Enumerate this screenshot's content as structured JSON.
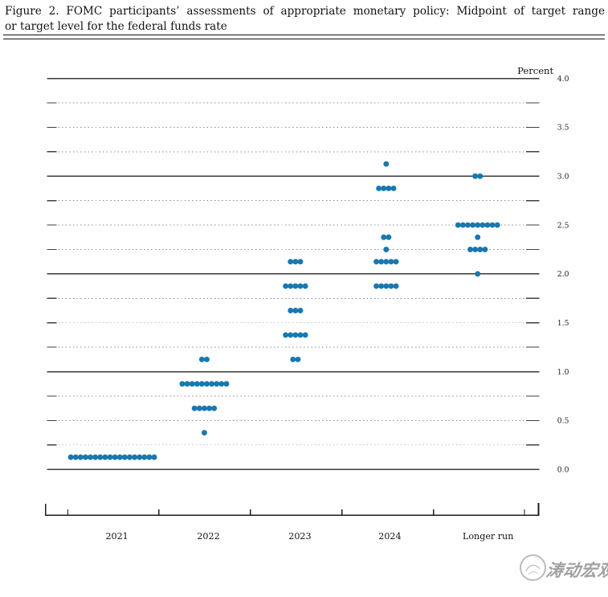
{
  "figure": {
    "title_line1": "Figure 2.  FOMC participants’ assessments of appropriate monetary policy:  Midpoint of target range",
    "title_line2": "or target level for the federal funds rate"
  },
  "watermark": {
    "text": "涛动宏观"
  },
  "chart_data": {
    "type": "scatter",
    "title": "FOMC participants’ assessments of appropriate monetary policy: Midpoint of target range or target level for the federal funds rate",
    "ylabel": "Percent",
    "xlabel": "",
    "ylim": [
      0.0,
      4.0
    ],
    "grid_step": 0.25,
    "label_step": 0.5,
    "grid": "dotted lines at quarter steps with solid end caps; solid lines at integers",
    "legend": "none",
    "yticklabels": [
      "4.0",
      "3.5",
      "3.0",
      "2.5",
      "2.0",
      "1.5",
      "1.0",
      "0.5",
      "0.0"
    ],
    "categories": [
      "2021",
      "2022",
      "2023",
      "2024",
      "Longer run"
    ],
    "dot_color": "#1878b0",
    "series": [
      {
        "name": "2021",
        "dots": [
          {
            "rate": 0.125,
            "count": 18
          }
        ]
      },
      {
        "name": "2022",
        "dots": [
          {
            "rate": 1.125,
            "count": 2
          },
          {
            "rate": 0.875,
            "count": 10
          },
          {
            "rate": 0.625,
            "count": 5
          },
          {
            "rate": 0.375,
            "count": 1
          }
        ]
      },
      {
        "name": "2023",
        "dots": [
          {
            "rate": 2.125,
            "count": 3
          },
          {
            "rate": 1.875,
            "count": 5
          },
          {
            "rate": 1.625,
            "count": 3
          },
          {
            "rate": 1.375,
            "count": 5
          },
          {
            "rate": 1.125,
            "count": 2
          }
        ]
      },
      {
        "name": "2024",
        "dots": [
          {
            "rate": 3.125,
            "count": 1
          },
          {
            "rate": 2.875,
            "count": 4
          },
          {
            "rate": 2.375,
            "count": 2
          },
          {
            "rate": 2.25,
            "count": 1
          },
          {
            "rate": 2.125,
            "count": 5
          },
          {
            "rate": 1.875,
            "count": 5
          }
        ]
      },
      {
        "name": "Longer run",
        "dots": [
          {
            "rate": 3.0,
            "count": 2
          },
          {
            "rate": 2.5,
            "count": 9
          },
          {
            "rate": 2.375,
            "count": 1
          },
          {
            "rate": 2.25,
            "count": 4
          },
          {
            "rate": 2.0,
            "count": 1
          }
        ]
      }
    ]
  }
}
